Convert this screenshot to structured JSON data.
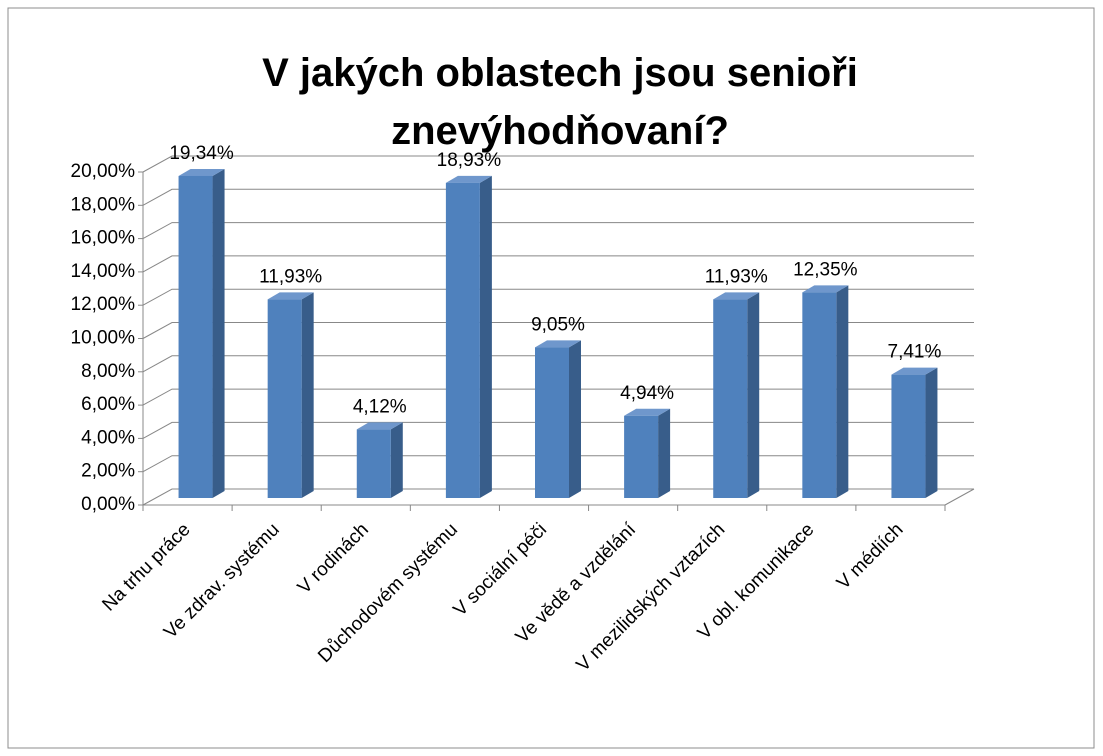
{
  "chart_data": {
    "type": "bar3d",
    "title": "V jakých oblastech jsou senioři znevýhodňovaní?",
    "categories": [
      "Na trhu práce",
      "Ve zdrav. systému",
      "V rodinách",
      "Důchodovém systému",
      "V sociální péči",
      "Ve vědě a vzdělání",
      "V mezilidských vztazích",
      "V obl. komunikace",
      "V médiích"
    ],
    "values": [
      19.34,
      11.93,
      4.12,
      18.93,
      9.05,
      4.94,
      11.93,
      12.35,
      7.41
    ],
    "value_labels": [
      "19,34%",
      "11,93%",
      "4,12%",
      "18,93%",
      "9,05%",
      "4,94%",
      "11,93%",
      "12,35%",
      "7,41%"
    ],
    "color": "#4f81bd",
    "ylim": [
      0,
      20
    ],
    "yticks": [
      {
        "value": 0,
        "label": "0,00%"
      },
      {
        "value": 2,
        "label": "2,00%"
      },
      {
        "value": 4,
        "label": "4,00%"
      },
      {
        "value": 6,
        "label": "6,00%"
      },
      {
        "value": 8,
        "label": "8,00%"
      },
      {
        "value": 10,
        "label": "10,00%"
      },
      {
        "value": 12,
        "label": "12,00%"
      },
      {
        "value": 14,
        "label": "14,00%"
      },
      {
        "value": 16,
        "label": "16,00%"
      },
      {
        "value": 18,
        "label": "18,00%"
      },
      {
        "value": 20,
        "label": "20,00%"
      }
    ],
    "grid": true
  }
}
